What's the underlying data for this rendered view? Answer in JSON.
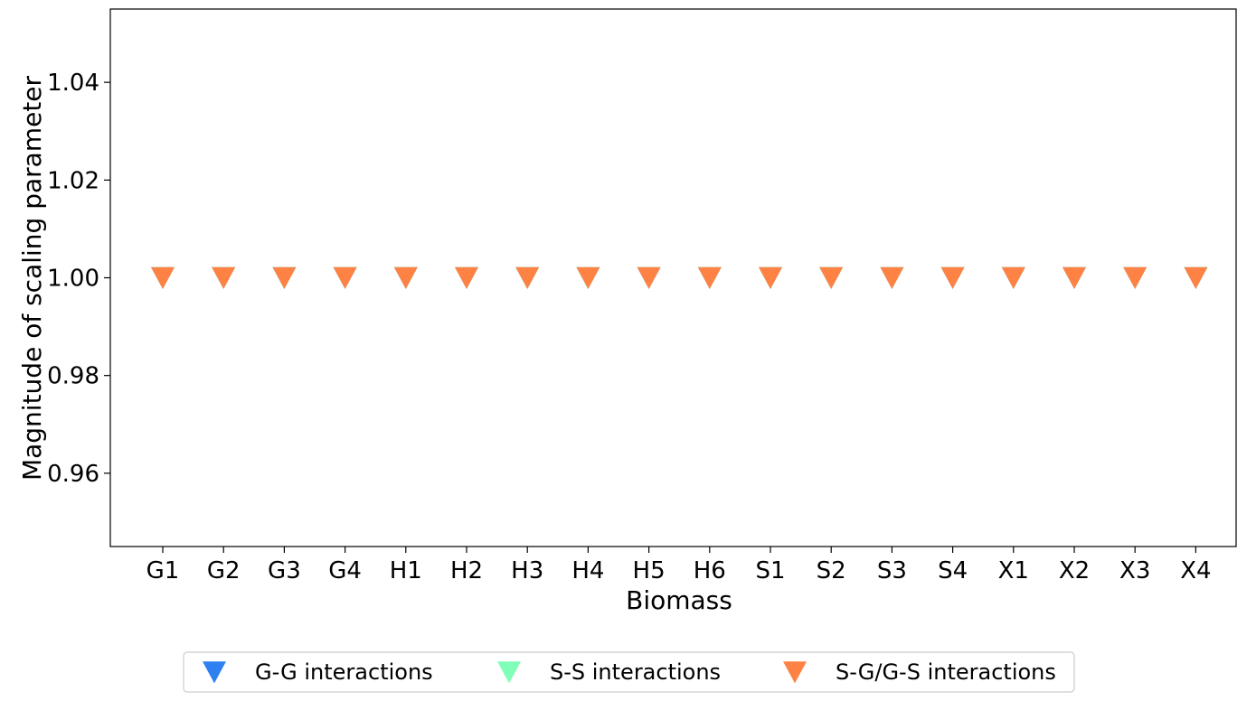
{
  "chart_data": {
    "type": "scatter",
    "marker": "triangle-down",
    "categories": [
      "G1",
      "G2",
      "G3",
      "G4",
      "H1",
      "H2",
      "H3",
      "H4",
      "H5",
      "H6",
      "S1",
      "S2",
      "S3",
      "S4",
      "X1",
      "X2",
      "X3",
      "X4"
    ],
    "series": [
      {
        "name": "G-G interactions",
        "color": "#2e7ff0",
        "values": [
          1.0,
          1.0,
          1.0,
          1.0,
          1.0,
          1.0,
          1.0,
          1.0,
          1.0,
          1.0,
          1.0,
          1.0,
          1.0,
          1.0,
          1.0,
          1.0,
          1.0,
          1.0
        ]
      },
      {
        "name": "S-S interactions",
        "color": "#80ffb8",
        "values": [
          1.0,
          1.0,
          1.0,
          1.0,
          1.0,
          1.0,
          1.0,
          1.0,
          1.0,
          1.0,
          1.0,
          1.0,
          1.0,
          1.0,
          1.0,
          1.0,
          1.0,
          1.0
        ]
      },
      {
        "name": "S-G/G-S interactions",
        "color": "#ff8245",
        "values": [
          1.0,
          1.0,
          1.0,
          1.0,
          1.0,
          1.0,
          1.0,
          1.0,
          1.0,
          1.0,
          1.0,
          1.0,
          1.0,
          1.0,
          1.0,
          1.0,
          1.0,
          1.0
        ]
      }
    ],
    "xlabel": "Biomass",
    "ylabel": "Magnitude of scaling parameter",
    "ylim": [
      0.945,
      1.055
    ],
    "yticks": [
      0.96,
      0.98,
      1.0,
      1.02,
      1.04
    ],
    "ytick_labels": [
      "0.96",
      "0.98",
      "1.00",
      "1.02",
      "1.04"
    ],
    "grid": false,
    "legend_position": "bottom-center"
  }
}
